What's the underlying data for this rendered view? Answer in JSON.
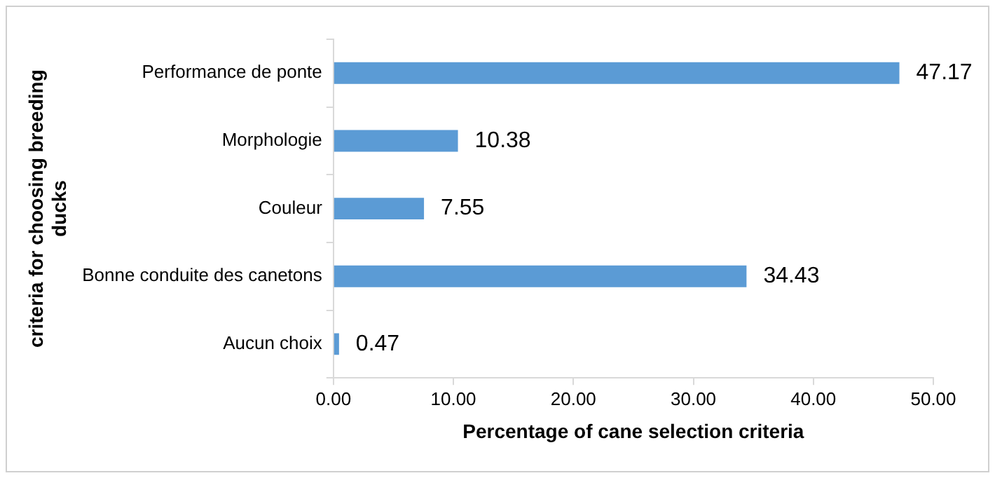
{
  "chart_data": {
    "type": "bar",
    "orientation": "horizontal",
    "categories": [
      "Performance de ponte",
      "Morphologie",
      "Couleur",
      "Bonne conduite des canetons",
      "Aucun choix"
    ],
    "values": [
      47.17,
      10.38,
      7.55,
      34.43,
      0.47
    ],
    "color": "#5b9bd5",
    "xlabel": "Percentage of cane selection criteria",
    "ylabel": "criteria for choosing breeding ducks",
    "xlim": [
      0,
      50
    ],
    "xticks": [
      {
        "value": 0,
        "label": "0.00"
      },
      {
        "value": 10,
        "label": "10.00"
      },
      {
        "value": 20,
        "label": "20.00"
      },
      {
        "value": 30,
        "label": "30.00"
      },
      {
        "value": 40,
        "label": "40.00"
      },
      {
        "value": 50,
        "label": "50.00"
      }
    ],
    "data_labels": true,
    "grid": false,
    "legend": false
  }
}
